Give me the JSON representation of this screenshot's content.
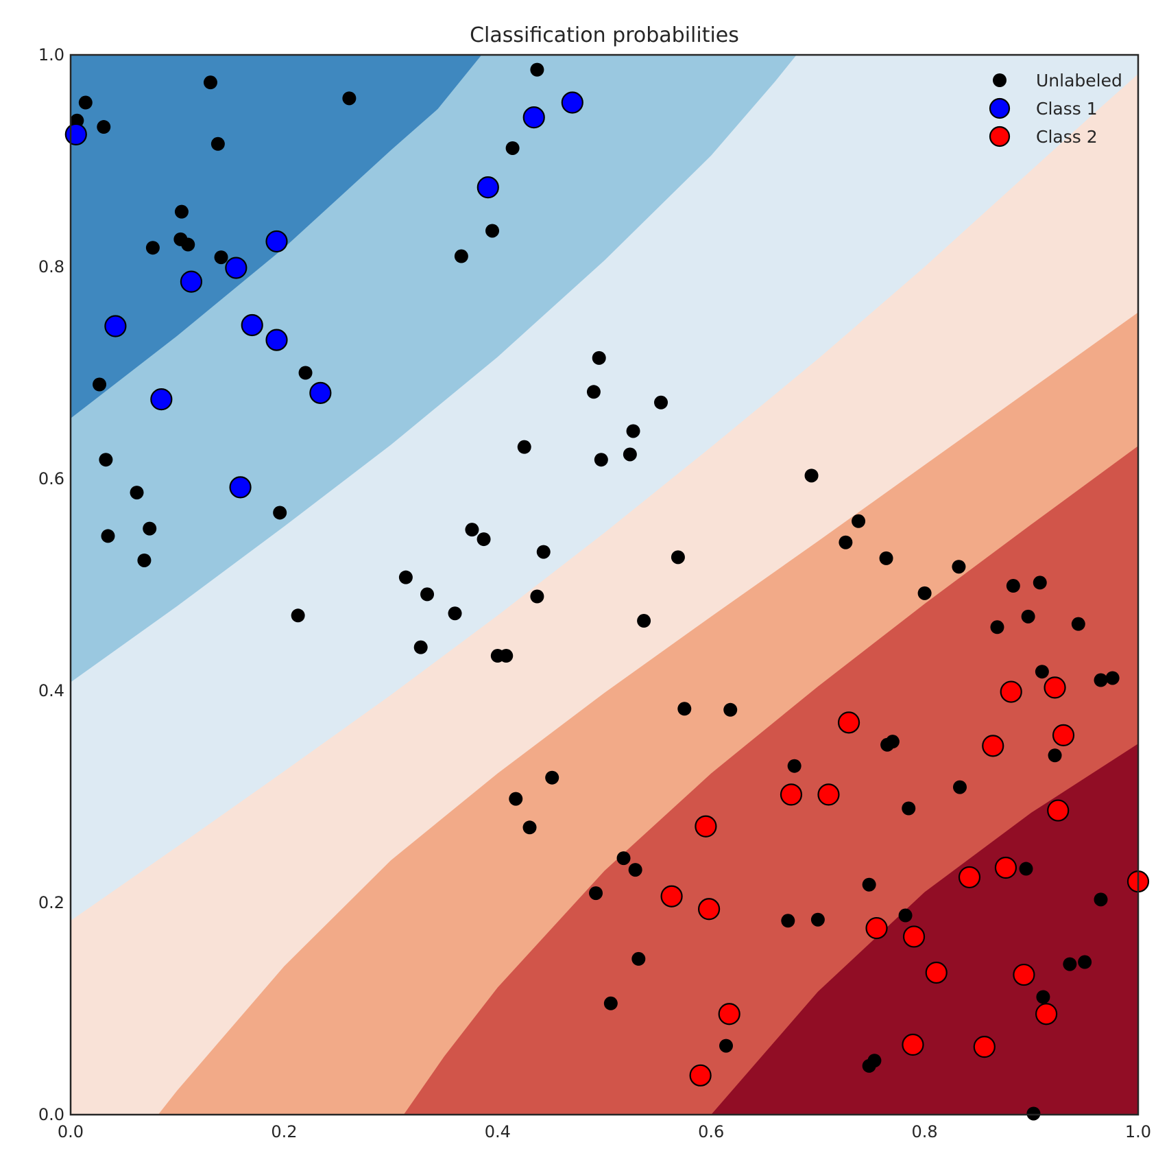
{
  "chart_data": {
    "type": "scatter",
    "title": "Classification probabilities",
    "xlabel": "",
    "ylabel": "",
    "xlim": [
      0,
      1
    ],
    "ylim": [
      0,
      1
    ],
    "x_ticks": [
      "0.0",
      "0.2",
      "0.4",
      "0.6",
      "0.8",
      "1.0"
    ],
    "y_ticks": [
      "0.0",
      "0.2",
      "0.4",
      "0.6",
      "0.8",
      "1.0"
    ],
    "grid": false,
    "legend_position": "top-right",
    "background": {
      "type": "filled-contour",
      "colormap": "RdBu_r",
      "description_levels": "probability of Class 2",
      "bands": [
        {
          "color": "#3f88bf",
          "boundary_upper": null,
          "boundary_lower": [
            [
              0.0,
              0.657
            ],
            [
              0.1,
              0.735
            ],
            [
              0.2,
              0.818
            ],
            [
              0.3,
              0.91
            ],
            [
              0.344,
              0.949
            ],
            [
              0.385,
              1.0
            ]
          ]
        },
        {
          "color": "#9ac8e0",
          "boundary_lower": [
            [
              0.0,
              0.408
            ],
            [
              0.1,
              0.48
            ],
            [
              0.2,
              0.555
            ],
            [
              0.3,
              0.632
            ],
            [
              0.4,
              0.715
            ],
            [
              0.5,
              0.806
            ],
            [
              0.6,
              0.905
            ],
            [
              0.66,
              0.975
            ],
            [
              0.68,
              1.0
            ]
          ]
        },
        {
          "color": "#ddeaf3",
          "boundary_lower": [
            [
              0.0,
              0.183
            ],
            [
              0.1,
              0.253
            ],
            [
              0.2,
              0.324
            ],
            [
              0.3,
              0.396
            ],
            [
              0.4,
              0.471
            ],
            [
              0.5,
              0.549
            ],
            [
              0.6,
              0.63
            ],
            [
              0.7,
              0.713
            ],
            [
              0.8,
              0.8
            ],
            [
              0.88,
              0.873
            ],
            [
              0.96,
              0.946
            ],
            [
              1.0,
              0.982
            ]
          ]
        },
        {
          "color": "#f9e2d7",
          "boundary_lower": [
            [
              0.082,
              0.0
            ],
            [
              0.1,
              0.023
            ],
            [
              0.2,
              0.14
            ],
            [
              0.3,
              0.24
            ],
            [
              0.4,
              0.322
            ],
            [
              0.5,
              0.398
            ],
            [
              0.6,
              0.47
            ],
            [
              0.7,
              0.541
            ],
            [
              0.8,
              0.613
            ],
            [
              0.9,
              0.685
            ],
            [
              1.0,
              0.757
            ]
          ]
        },
        {
          "color": "#f2aa88",
          "boundary_lower": [
            [
              0.312,
              0.0
            ],
            [
              0.35,
              0.055
            ],
            [
              0.4,
              0.12
            ],
            [
              0.5,
              0.23
            ],
            [
              0.6,
              0.322
            ],
            [
              0.7,
              0.404
            ],
            [
              0.8,
              0.482
            ],
            [
              0.9,
              0.557
            ],
            [
              1.0,
              0.631
            ]
          ]
        },
        {
          "color": "#d1554a",
          "boundary_lower": [
            [
              0.6,
              0.0
            ],
            [
              0.65,
              0.058
            ],
            [
              0.7,
              0.116
            ],
            [
              0.8,
              0.21
            ],
            [
              0.9,
              0.285
            ],
            [
              1.0,
              0.35
            ]
          ]
        },
        {
          "color": "#910d25",
          "boundary_lower": null
        }
      ]
    },
    "series": [
      {
        "name": "Unlabeled",
        "color": "#000000",
        "marker_size": "small",
        "points": [
          [
            0.006,
            0.938
          ],
          [
            0.014,
            0.955
          ],
          [
            0.031,
            0.932
          ],
          [
            0.131,
            0.974
          ],
          [
            0.138,
            0.916
          ],
          [
            0.261,
            0.959
          ],
          [
            0.437,
            0.986
          ],
          [
            0.414,
            0.912
          ],
          [
            0.104,
            0.852
          ],
          [
            0.103,
            0.826
          ],
          [
            0.11,
            0.821
          ],
          [
            0.077,
            0.818
          ],
          [
            0.141,
            0.809
          ],
          [
            0.395,
            0.834
          ],
          [
            0.366,
            0.81
          ],
          [
            0.027,
            0.689
          ],
          [
            0.22,
            0.7
          ],
          [
            0.495,
            0.714
          ],
          [
            0.49,
            0.682
          ],
          [
            0.553,
            0.672
          ],
          [
            0.033,
            0.618
          ],
          [
            0.062,
            0.587
          ],
          [
            0.074,
            0.553
          ],
          [
            0.035,
            0.546
          ],
          [
            0.069,
            0.523
          ],
          [
            0.196,
            0.568
          ],
          [
            0.425,
            0.63
          ],
          [
            0.527,
            0.645
          ],
          [
            0.497,
            0.618
          ],
          [
            0.524,
            0.623
          ],
          [
            0.694,
            0.603
          ],
          [
            0.376,
            0.552
          ],
          [
            0.387,
            0.543
          ],
          [
            0.443,
            0.531
          ],
          [
            0.314,
            0.507
          ],
          [
            0.334,
            0.491
          ],
          [
            0.36,
            0.473
          ],
          [
            0.437,
            0.489
          ],
          [
            0.213,
            0.471
          ],
          [
            0.328,
            0.441
          ],
          [
            0.4,
            0.433
          ],
          [
            0.408,
            0.433
          ],
          [
            0.569,
            0.526
          ],
          [
            0.738,
            0.56
          ],
          [
            0.726,
            0.54
          ],
          [
            0.764,
            0.525
          ],
          [
            0.832,
            0.517
          ],
          [
            0.883,
            0.499
          ],
          [
            0.908,
            0.502
          ],
          [
            0.8,
            0.492
          ],
          [
            0.868,
            0.46
          ],
          [
            0.897,
            0.47
          ],
          [
            0.944,
            0.463
          ],
          [
            0.537,
            0.466
          ],
          [
            0.91,
            0.418
          ],
          [
            0.965,
            0.41
          ],
          [
            0.976,
            0.412
          ],
          [
            0.575,
            0.383
          ],
          [
            0.618,
            0.382
          ],
          [
            0.765,
            0.349
          ],
          [
            0.77,
            0.352
          ],
          [
            0.678,
            0.329
          ],
          [
            0.922,
            0.339
          ],
          [
            0.451,
            0.318
          ],
          [
            0.417,
            0.298
          ],
          [
            0.43,
            0.271
          ],
          [
            0.833,
            0.309
          ],
          [
            0.785,
            0.289
          ],
          [
            0.518,
            0.242
          ],
          [
            0.529,
            0.231
          ],
          [
            0.492,
            0.209
          ],
          [
            0.748,
            0.217
          ],
          [
            0.895,
            0.232
          ],
          [
            0.965,
            0.203
          ],
          [
            0.672,
            0.183
          ],
          [
            0.7,
            0.184
          ],
          [
            0.782,
            0.188
          ],
          [
            0.532,
            0.147
          ],
          [
            0.936,
            0.142
          ],
          [
            0.95,
            0.144
          ],
          [
            0.506,
            0.105
          ],
          [
            0.911,
            0.111
          ],
          [
            0.614,
            0.065
          ],
          [
            0.753,
            0.051
          ],
          [
            0.748,
            0.046
          ],
          [
            0.902,
            0.001
          ]
        ]
      },
      {
        "name": "Class 1",
        "color": "#0000ff",
        "marker_size": "large",
        "points": [
          [
            0.005,
            0.925
          ],
          [
            0.434,
            0.941
          ],
          [
            0.47,
            0.955
          ],
          [
            0.391,
            0.875
          ],
          [
            0.193,
            0.824
          ],
          [
            0.155,
            0.799
          ],
          [
            0.113,
            0.786
          ],
          [
            0.042,
            0.744
          ],
          [
            0.17,
            0.745
          ],
          [
            0.193,
            0.731
          ],
          [
            0.085,
            0.675
          ],
          [
            0.234,
            0.681
          ],
          [
            0.159,
            0.592
          ]
        ]
      },
      {
        "name": "Class 2",
        "color": "#ff0000",
        "marker_size": "large",
        "points": [
          [
            0.881,
            0.399
          ],
          [
            0.922,
            0.403
          ],
          [
            0.729,
            0.37
          ],
          [
            0.93,
            0.358
          ],
          [
            0.864,
            0.348
          ],
          [
            0.675,
            0.302
          ],
          [
            0.71,
            0.302
          ],
          [
            0.595,
            0.272
          ],
          [
            0.925,
            0.287
          ],
          [
            0.842,
            0.224
          ],
          [
            0.876,
            0.233
          ],
          [
            1.0,
            0.22
          ],
          [
            0.563,
            0.206
          ],
          [
            0.598,
            0.194
          ],
          [
            0.755,
            0.176
          ],
          [
            0.79,
            0.168
          ],
          [
            0.811,
            0.134
          ],
          [
            0.893,
            0.132
          ],
          [
            0.617,
            0.095
          ],
          [
            0.914,
            0.095
          ],
          [
            0.789,
            0.066
          ],
          [
            0.856,
            0.064
          ],
          [
            0.59,
            0.037
          ]
        ]
      }
    ]
  }
}
